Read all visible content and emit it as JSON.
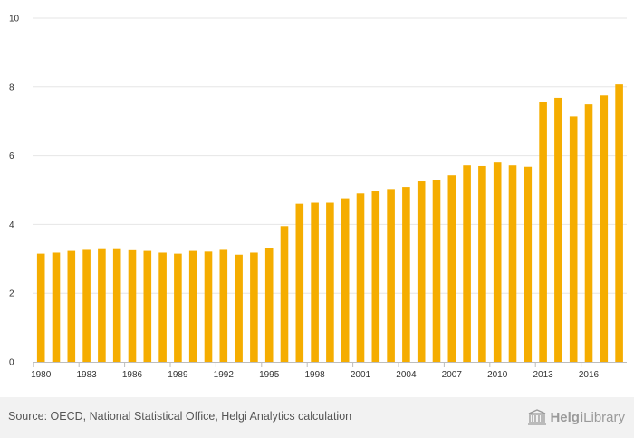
{
  "chart_data": {
    "type": "bar",
    "color": "#f5ad00",
    "categories": [
      "1980",
      "1981",
      "1982",
      "1983",
      "1984",
      "1985",
      "1986",
      "1987",
      "1988",
      "1989",
      "1990",
      "1991",
      "1992",
      "1993",
      "1994",
      "1995",
      "1996",
      "1997",
      "1998",
      "1999",
      "2000",
      "2001",
      "2002",
      "2003",
      "2004",
      "2005",
      "2006",
      "2007",
      "2008",
      "2009",
      "2010",
      "2011",
      "2012",
      "2013",
      "2014",
      "2015",
      "2016",
      "2017",
      "2018"
    ],
    "values": [
      3.15,
      3.18,
      3.23,
      3.26,
      3.28,
      3.28,
      3.25,
      3.23,
      3.18,
      3.15,
      3.23,
      3.21,
      3.26,
      3.12,
      3.18,
      3.3,
      3.95,
      4.6,
      4.63,
      4.63,
      4.76,
      4.9,
      4.96,
      5.03,
      5.09,
      5.25,
      5.3,
      5.43,
      5.72,
      5.7,
      5.8,
      5.72,
      5.68,
      7.57,
      7.68,
      7.14,
      7.49,
      7.75,
      8.07
    ],
    "x_tick_labels": [
      "1980",
      "1983",
      "1986",
      "1989",
      "1992",
      "1995",
      "1998",
      "2001",
      "2004",
      "2007",
      "2010",
      "2013",
      "2016"
    ],
    "y_ticks": [
      0,
      2,
      4,
      6,
      8,
      10
    ],
    "ylim": [
      0,
      10
    ],
    "grid": true
  },
  "footer": {
    "source": "Source: OECD, National Statistical Office, Helgi Analytics calculation",
    "brand_name": "Helgi",
    "brand_suffix": "Library"
  }
}
